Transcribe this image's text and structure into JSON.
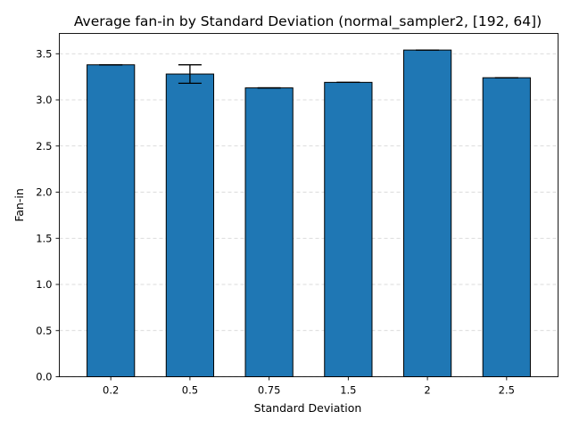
{
  "chart_data": {
    "type": "bar",
    "title": "Average fan-in by Standard Deviation (normal_sampler2, [192, 64])",
    "xlabel": "Standard Deviation",
    "ylabel": "Fan-in",
    "categories": [
      "0.2",
      "0.5",
      "0.75",
      "1.5",
      "2",
      "2.5"
    ],
    "values": [
      3.38,
      3.28,
      3.13,
      3.19,
      3.54,
      3.24
    ],
    "errors": [
      0.0,
      0.1,
      0.0,
      0.0,
      0.0,
      0.0
    ],
    "ylim": [
      0,
      3.72
    ],
    "yticks": [
      "0.0",
      "0.5",
      "1.0",
      "1.5",
      "2.0",
      "2.5",
      "3.0",
      "3.5"
    ],
    "grid": "y-dashed",
    "bar_color": "#1f77b4",
    "edge_color": "#000000"
  }
}
